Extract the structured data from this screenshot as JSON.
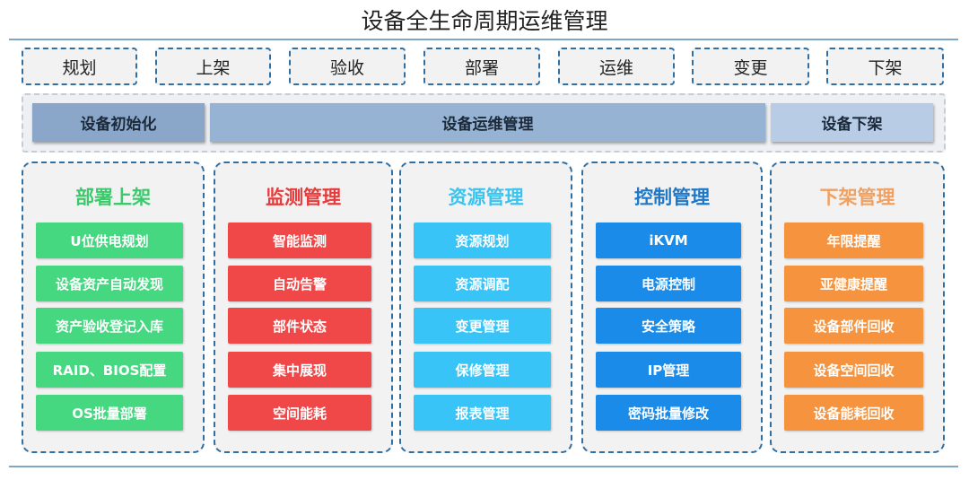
{
  "title": "设备全生命周期运维管理",
  "stages": [
    "规划",
    "上架",
    "验收",
    "部署",
    "运维",
    "变更",
    "下架"
  ],
  "phases": [
    {
      "label": "设备初始化",
      "color": "#8aa7c9"
    },
    {
      "label": "设备运维管理",
      "color": "#97b3d3"
    },
    {
      "label": "设备下架",
      "color": "#b8cce6"
    }
  ],
  "columns": [
    {
      "title": "部署上架",
      "title_color": "#3cc96b",
      "item_color": "#45d880",
      "items": [
        "U位供电规划",
        "设备资产自动发现",
        "资产验收登记入库",
        "RAID、BIOS配置",
        "OS批量部署"
      ]
    },
    {
      "title": "监测管理",
      "title_color": "#e83a3a",
      "item_color": "#f04848",
      "items": [
        "智能监测",
        "自动告警",
        "部件状态",
        "集中展现",
        "空间能耗"
      ]
    },
    {
      "title": "资源管理",
      "title_color": "#3ac4f0",
      "item_color": "#38c4f7",
      "items": [
        "资源规划",
        "资源调配",
        "变更管理",
        "保修管理",
        "报表管理"
      ]
    },
    {
      "title": "控制管理",
      "title_color": "#1e78c8",
      "item_color": "#1a8be8",
      "items": [
        "iKVM",
        "电源控制",
        "安全策略",
        "IP管理",
        "密码批量修改"
      ]
    },
    {
      "title": "下架管理",
      "title_color": "#f0a060",
      "item_color": "#f5933f",
      "items": [
        "年限提醒",
        "亚健康提醒",
        "设备部件回收",
        "设备空间回收",
        "设备能耗回收"
      ]
    }
  ]
}
